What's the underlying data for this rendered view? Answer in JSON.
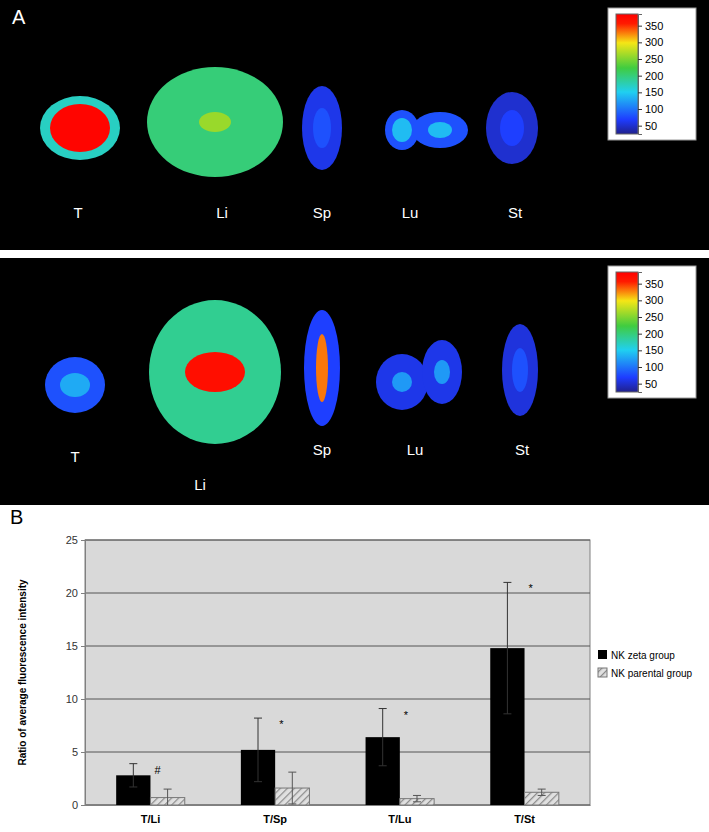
{
  "chart_data": [
    {
      "type": "heatmap",
      "title": "A",
      "categories": [
        "T",
        "Li",
        "Sp",
        "Lu",
        "St"
      ],
      "values": [
        380,
        260,
        80,
        140,
        70
      ],
      "rim_values": [
        170,
        200,
        60,
        80,
        50
      ],
      "colorbar_range": [
        25,
        385
      ],
      "colorbar_ticks": [
        50,
        100,
        150,
        200,
        250,
        300,
        350
      ]
    },
    {
      "type": "heatmap",
      "categories": [
        "T",
        "Li",
        "Sp",
        "Lu",
        "St"
      ],
      "values": [
        130,
        370,
        330,
        120,
        80
      ],
      "rim_values": [
        80,
        190,
        70,
        60,
        55
      ],
      "colorbar_range": [
        25,
        385
      ],
      "colorbar_ticks": [
        50,
        100,
        150,
        200,
        250,
        300,
        350
      ]
    },
    {
      "type": "bar",
      "title": "B",
      "y_label": "Ratio of average fluorescence intensity",
      "categories": [
        "T/Li",
        "T/Sp",
        "T/Lu",
        "T/St"
      ],
      "series": [
        {
          "name": "NK zeta group",
          "color": "#000000",
          "values": [
            2.8,
            5.2,
            6.4,
            14.8
          ],
          "errors": [
            1.1,
            3.0,
            2.7,
            6.2
          ],
          "significance": [
            "#",
            "*",
            "*",
            "*"
          ]
        },
        {
          "name": "NK parental group",
          "color": "#8c8c8c",
          "values": [
            0.7,
            1.6,
            0.6,
            1.2
          ],
          "errors": [
            0.8,
            1.5,
            0.3,
            0.3
          ]
        }
      ],
      "ylim": [
        0,
        25
      ],
      "yticks": [
        0,
        5,
        10,
        15,
        20,
        25
      ],
      "grid": true,
      "legend": "right"
    }
  ]
}
